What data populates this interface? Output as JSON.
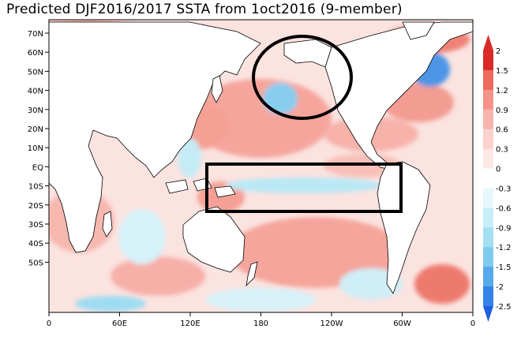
{
  "title": "Predicted DJF2016/2017 SSTA from 1oct2016 (9-member)",
  "map": {
    "lat_labels": [
      "70N",
      "60N",
      "50N",
      "40N",
      "30N",
      "20N",
      "10N",
      "EQ",
      "10S",
      "20S",
      "30S",
      "40S",
      "50S"
    ],
    "lon_labels": [
      "0",
      "60E",
      "120E",
      "180",
      "120W",
      "60W",
      "0"
    ],
    "lon_range": [
      0,
      360
    ],
    "lat_range": [
      -55,
      75
    ],
    "background_color": "#ffffff",
    "annotations": [
      {
        "shape": "circle",
        "region": "Gulf of Alaska / NE Pacific"
      },
      {
        "shape": "rectangle",
        "region": "Equatorial Pacific"
      }
    ]
  },
  "colorbar": {
    "labels": [
      "2",
      "1.5",
      "1.2",
      "0.9",
      "0.6",
      "0.3",
      "0",
      "-0.3",
      "-0.6",
      "-0.9",
      "-1.2",
      "-1.5",
      "-2",
      "-2.5"
    ],
    "colors": [
      "#d92a28",
      "#ee6a5c",
      "#f5928a",
      "#f8b5ae",
      "#fbd2cc",
      "#fde8e5",
      "#ffffff",
      "#e6f8fb",
      "#c7eef6",
      "#a4e0f2",
      "#7fcbee",
      "#58a9ea",
      "#3384e6",
      "#1f5fe0"
    ]
  }
}
